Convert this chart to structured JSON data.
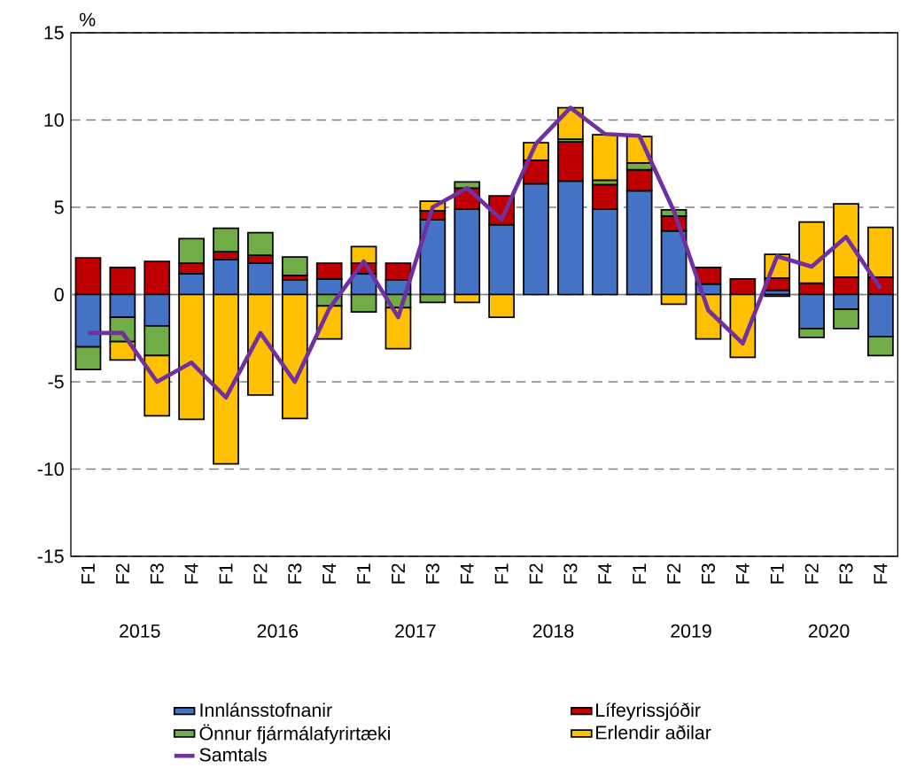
{
  "chart_data": {
    "type": "bar",
    "stacked": true,
    "ylabel": "%",
    "categories": [
      "F1",
      "F2",
      "F3",
      "F4",
      "F1",
      "F2",
      "F3",
      "F4",
      "F1",
      "F2",
      "F3",
      "F4",
      "F1",
      "F2",
      "F3",
      "F4",
      "F1",
      "F2",
      "F3",
      "F4",
      "F1",
      "F2",
      "F3",
      "F4"
    ],
    "annotations": [
      "2015",
      "2016",
      "2017",
      "2018",
      "2019",
      "2020"
    ],
    "ylim": [
      -15,
      15
    ],
    "yticks": [
      -15,
      -10,
      -5,
      0,
      5,
      10,
      15
    ],
    "grid": "y",
    "legend": "bottom",
    "series": [
      {
        "name": "Innlánsstofnanir",
        "color": "#4472c4",
        "values": [
          -3.0,
          -1.3,
          -1.8,
          1.2,
          2.0,
          1.8,
          0.85,
          0.9,
          1.2,
          0.85,
          4.3,
          4.9,
          4.0,
          6.35,
          6.5,
          4.9,
          5.95,
          3.65,
          0.6,
          0,
          0.25,
          -1.95,
          -0.85,
          -2.4
        ]
      },
      {
        "name": "Lífeyrissjóðir",
        "color": "#c00000",
        "values": [
          2.1,
          1.55,
          1.9,
          0.6,
          0.45,
          0.45,
          0.25,
          0.9,
          0.6,
          0.95,
          0.5,
          1.2,
          1.65,
          1.35,
          2.25,
          1.4,
          1.2,
          0.85,
          0.95,
          0.9,
          0.7,
          0.65,
          1.0,
          1.0
        ]
      },
      {
        "name": "Önnur fjármálafyrirtæki",
        "color": "#70ad47",
        "values": [
          -1.3,
          -1.4,
          -1.7,
          1.4,
          1.35,
          1.3,
          1.05,
          -0.65,
          -1.0,
          -0.75,
          -0.45,
          0.35,
          0,
          0,
          0.15,
          0.25,
          0.4,
          0.35,
          0,
          0,
          -0.1,
          -0.5,
          -1.1,
          -1.1
        ]
      },
      {
        "name": "Erlendir aðilar",
        "color": "#ffc000",
        "values": [
          0,
          -1.05,
          -3.45,
          -7.15,
          -9.7,
          -5.75,
          -7.1,
          -1.9,
          0.95,
          -2.35,
          0.55,
          -0.45,
          -1.3,
          1.0,
          1.8,
          2.6,
          1.5,
          -0.55,
          -2.55,
          -3.6,
          1.35,
          3.5,
          4.2,
          2.85
        ]
      },
      {
        "name": "Samtals",
        "type": "line",
        "color": "#7030a0",
        "values": [
          -2.2,
          -2.2,
          -5.0,
          -3.9,
          -5.9,
          -2.2,
          -5.0,
          -0.8,
          1.9,
          -1.3,
          5.0,
          6.1,
          4.3,
          8.65,
          10.7,
          9.2,
          9.1,
          4.8,
          -0.9,
          -2.8,
          2.2,
          1.6,
          3.3,
          0.35
        ]
      }
    ]
  }
}
